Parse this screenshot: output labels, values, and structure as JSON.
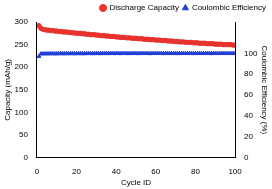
{
  "chart_data": {
    "type": "scatter",
    "x_label": "Cycle ID",
    "y_label": "Capacity (mAh/g)",
    "y2_label": "Coulombic Efficiency (%)",
    "x": [
      1,
      2,
      3,
      4,
      5,
      6,
      7,
      8,
      9,
      10,
      11,
      12,
      13,
      14,
      15,
      16,
      17,
      18,
      19,
      20,
      21,
      22,
      23,
      24,
      25,
      26,
      27,
      28,
      29,
      30,
      31,
      32,
      33,
      34,
      35,
      36,
      37,
      38,
      39,
      40,
      41,
      42,
      43,
      44,
      45,
      46,
      47,
      48,
      49,
      50,
      51,
      52,
      53,
      54,
      55,
      56,
      57,
      58,
      59,
      60,
      61,
      62,
      63,
      64,
      65,
      66,
      67,
      68,
      69,
      70,
      71,
      72,
      73,
      74,
      75,
      76,
      77,
      78,
      79,
      80,
      81,
      82,
      83,
      84,
      85,
      86,
      87,
      88,
      89,
      90,
      91,
      92,
      93,
      94,
      95,
      96,
      97,
      98,
      99,
      100
    ],
    "series": [
      {
        "name": "Discharge Capacity",
        "color": "#e8322e",
        "marker": "circle",
        "values": [
          292,
          286,
          284,
          283,
          282,
          282,
          281,
          281,
          280,
          280,
          279,
          279,
          278,
          278,
          278,
          277,
          277,
          276,
          276,
          275,
          275,
          275,
          274,
          274,
          273,
          273,
          272,
          272,
          272,
          271,
          271,
          270,
          270,
          270,
          269,
          269,
          268,
          268,
          268,
          267,
          267,
          266,
          266,
          266,
          265,
          265,
          265,
          264,
          264,
          264,
          263,
          263,
          263,
          262,
          262,
          262,
          261,
          261,
          261,
          260,
          260,
          260,
          259,
          259,
          259,
          258,
          258,
          258,
          257,
          257,
          257,
          256,
          256,
          256,
          255,
          255,
          255,
          255,
          254,
          254,
          254,
          253,
          253,
          253,
          253,
          252,
          252,
          252,
          252,
          251,
          251,
          251,
          251,
          250,
          250,
          250,
          250,
          250,
          249,
          249
        ]
      },
      {
        "name": "Coulombic Efficiency",
        "color": "#1f3fd6",
        "marker": "triangle",
        "axis": "y2",
        "values": [
          97,
          99.5,
          99.6,
          99.6,
          99.7,
          99.6,
          99.7,
          99.7,
          99.6,
          99.7,
          99.7,
          99.8,
          99.7,
          99.7,
          99.8,
          99.7,
          99.8,
          99.8,
          99.7,
          99.8,
          99.8,
          99.8,
          99.7,
          99.8,
          99.8,
          99.9,
          99.8,
          99.8,
          99.8,
          99.9,
          99.8,
          99.8,
          99.9,
          99.8,
          99.9,
          99.8,
          99.9,
          99.9,
          99.8,
          99.9,
          99.9,
          99.8,
          99.9,
          99.9,
          99.9,
          99.8,
          99.9,
          99.9,
          99.9,
          99.9,
          99.8,
          99.9,
          99.9,
          99.9,
          99.9,
          99.9,
          99.8,
          99.9,
          99.9,
          99.9,
          99.9,
          99.9,
          99.9,
          99.8,
          99.9,
          99.9,
          99.9,
          99.9,
          99.9,
          99.9,
          99.8,
          99.9,
          99.9,
          99.9,
          99.9,
          99.9,
          99.9,
          99.9,
          99.8,
          99.9,
          99.9,
          99.9,
          99.9,
          99.9,
          99.9,
          99.9,
          99.9,
          99.8,
          99.9,
          99.9,
          99.9,
          99.9,
          99.9,
          99.9,
          99.9,
          99.9,
          99.9,
          99.9,
          99.9,
          99.9
        ]
      }
    ],
    "xlim": [
      0,
      100
    ],
    "xticks": [
      0,
      20,
      40,
      60,
      80,
      100
    ],
    "ylim": [
      0,
      300
    ],
    "yticks": [
      0,
      50,
      100,
      150,
      200,
      250,
      300
    ],
    "y2lim": [
      0,
      130
    ],
    "y2ticks": [
      0,
      20,
      40,
      60,
      80,
      100
    ],
    "grid": false,
    "legend": "top-right"
  }
}
